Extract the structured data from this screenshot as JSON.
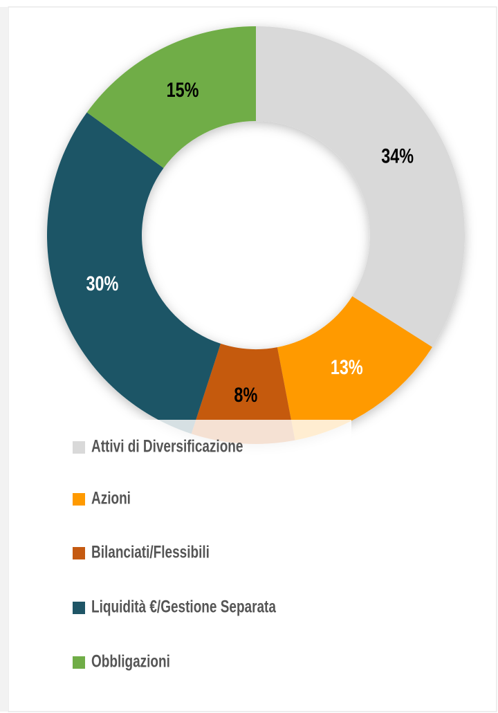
{
  "chart_data": {
    "type": "donut",
    "categories": [
      "Attivi di Diversificazione",
      "Azioni",
      "Bilanciati/Flessibili",
      "Liquidità €/Gestione Separata",
      "Obbligazioni"
    ],
    "values": [
      34,
      13,
      8,
      30,
      15
    ],
    "value_labels": [
      "34%",
      "13%",
      "8%",
      "30%",
      "15%"
    ],
    "colors": [
      "#d9d9d9",
      "#ff9a00",
      "#c55a11",
      "#1f5566",
      "#70ad47"
    ]
  }
}
